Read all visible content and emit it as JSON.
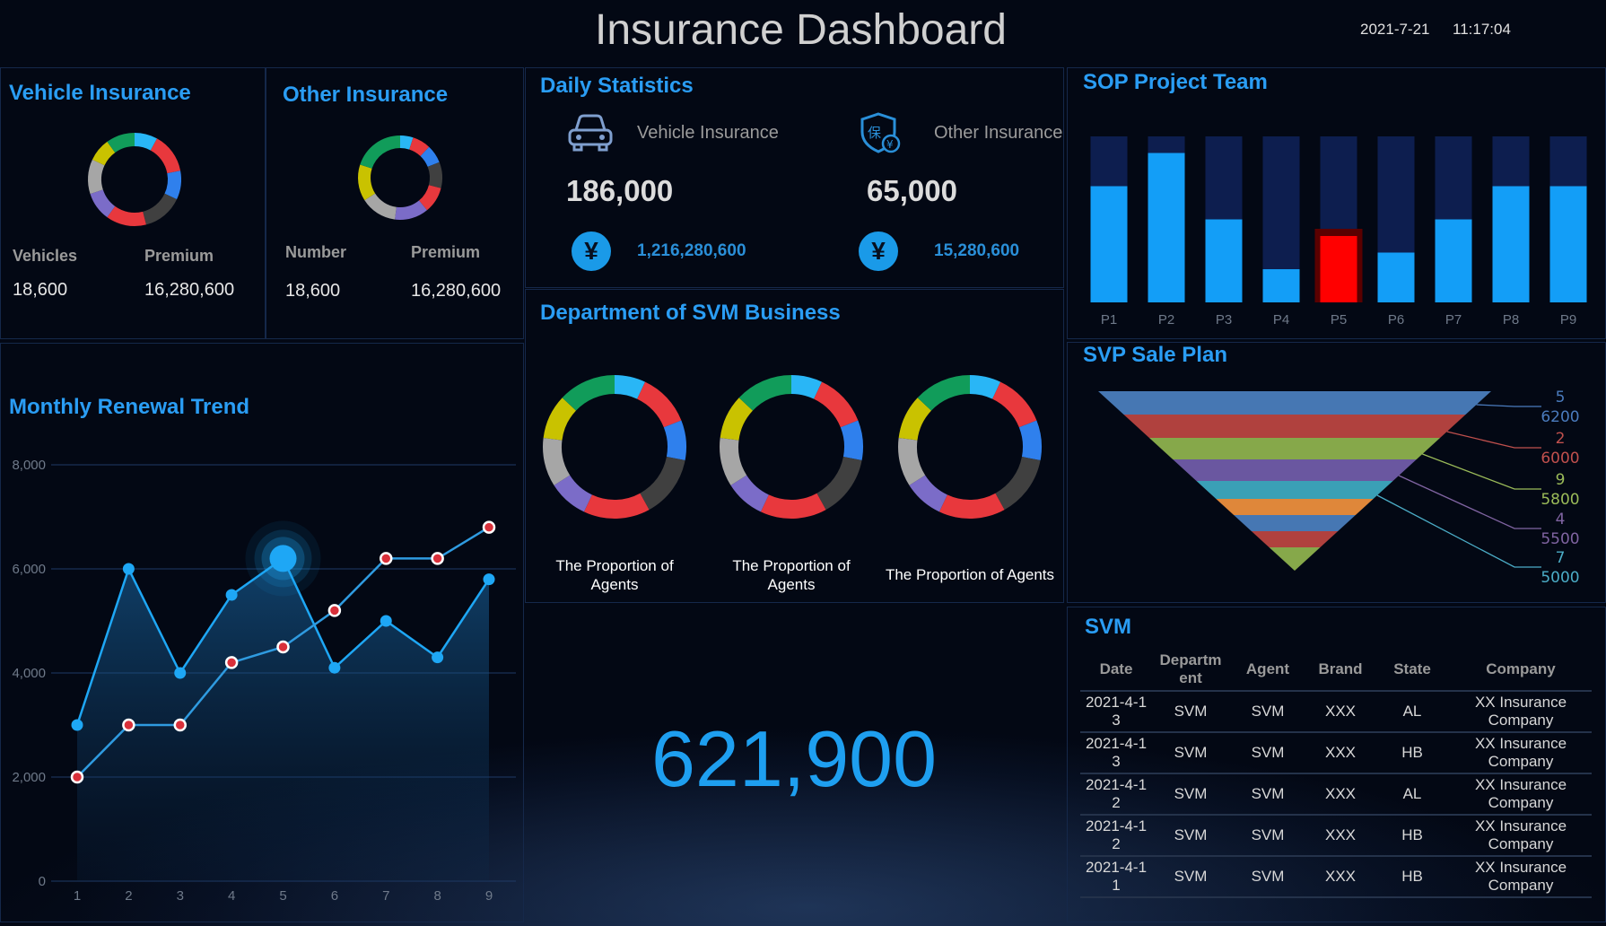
{
  "header": {
    "title": "Insurance Dashboard",
    "date": "2021-7-21",
    "time": "11:17:04"
  },
  "colors": {
    "accent": "#2a9df4",
    "donut": [
      "#29b6f6",
      "#e8383d",
      "#2f80ed",
      "#404040",
      "#e8383d",
      "#7b6cc8",
      "#a6a6a6",
      "#c9c200",
      "#119c5a"
    ]
  },
  "vehicle_insurance": {
    "title": "Vehicle Insurance",
    "col1_label": "Vehicles",
    "col2_label": "Premium",
    "col1_value": "18,600",
    "col2_value": "16,280,600",
    "donut": [
      8,
      14,
      10,
      14,
      14,
      10,
      12,
      8,
      10
    ]
  },
  "other_insurance": {
    "title": "Other Insurance",
    "col1_label": "Number",
    "col2_label": "Premium",
    "col1_value": "18,600",
    "col2_value": "16,280,600",
    "donut": [
      5,
      7,
      7,
      10,
      10,
      13,
      14,
      14,
      20
    ]
  },
  "daily": {
    "title": "Daily Statistics",
    "vehicle": {
      "label": "Vehicle Insurance",
      "icon": "car-icon",
      "count": "186,000",
      "amount_icon": "yen-icon",
      "amount": "1,216,280,600"
    },
    "other": {
      "label": "Other Insurance",
      "icon": "insurance-shield-icon",
      "count": "65,000",
      "amount_icon": "yen-icon",
      "amount": "15,280,600"
    }
  },
  "department": {
    "title": "Department of SVM Business",
    "donut": [
      7,
      12,
      9,
      14,
      15,
      9,
      11,
      10,
      13
    ],
    "charts": [
      {
        "label": "The Proportion of Agents"
      },
      {
        "label": "The Proportion of Agents"
      },
      {
        "label": "The Proportion of Agents"
      }
    ]
  },
  "center_total": "621,900",
  "chart_data": [
    {
      "type": "line",
      "title": "Monthly Renewal Trend",
      "x": [
        1,
        2,
        3,
        4,
        5,
        6,
        7,
        8,
        9
      ],
      "ylim": [
        0,
        8000
      ],
      "yticks": [
        "0",
        "2,000",
        "4,000",
        "6,000",
        "8,000"
      ],
      "grid": true,
      "series": [
        {
          "values": [
            3000,
            6000,
            4000,
            5500,
            6200,
            4100,
            5000,
            4300,
            5800
          ],
          "color": "#1ea7f5",
          "area": true,
          "highlight_index": 4
        },
        {
          "values": [
            2000,
            3000,
            3000,
            4200,
            4500,
            5200,
            6200,
            6200,
            6800
          ],
          "color": "#2f9be0",
          "marker": "#d9303a"
        }
      ]
    },
    {
      "type": "bar",
      "title": "SOP Project Team",
      "categories": [
        "P1",
        "P2",
        "P3",
        "P4",
        "P5",
        "P6",
        "P7",
        "P8",
        "P9"
      ],
      "values": [
        70,
        90,
        50,
        20,
        40,
        30,
        50,
        70,
        70
      ],
      "ylim": [
        0,
        100
      ],
      "color": "#139ef7",
      "background": "#0d1e4f",
      "highlight": {
        "index": 4,
        "color": "#ff0000"
      }
    },
    {
      "type": "funnel",
      "title": "SVP Sale Plan",
      "bands": 9,
      "colors": [
        "#4677b3",
        "#b0413e",
        "#86a84a",
        "#6a57a0",
        "#3aa0b6",
        "#df873a",
        "#4677b3",
        "#b0413e",
        "#86a84a"
      ],
      "labels": [
        {
          "name": "5",
          "value": 6200,
          "color": "#4a7bbd"
        },
        {
          "name": "2",
          "value": 6000,
          "color": "#c0504d"
        },
        {
          "name": "9",
          "value": 5800,
          "color": "#9bbb59"
        },
        {
          "name": "4",
          "value": 5500,
          "color": "#8064a2"
        },
        {
          "name": "7",
          "value": 5000,
          "color": "#4bacc6"
        }
      ]
    }
  ],
  "svm": {
    "title": "SVM",
    "columns": [
      "Date",
      "Department",
      "Agent",
      "Brand",
      "State",
      "Company"
    ],
    "rows": [
      [
        "2021-4-13",
        "SVM",
        "SVM",
        "XXX",
        "AL",
        "XX Insurance Company"
      ],
      [
        "2021-4-13",
        "SVM",
        "SVM",
        "XXX",
        "HB",
        "XX Insurance Company"
      ],
      [
        "2021-4-12",
        "SVM",
        "SVM",
        "XXX",
        "AL",
        "XX Insurance Company"
      ],
      [
        "2021-4-12",
        "SVM",
        "SVM",
        "XXX",
        "HB",
        "XX Insurance Company"
      ],
      [
        "2021-4-11",
        "SVM",
        "SVM",
        "XXX",
        "HB",
        "XX Insurance Company"
      ]
    ]
  }
}
